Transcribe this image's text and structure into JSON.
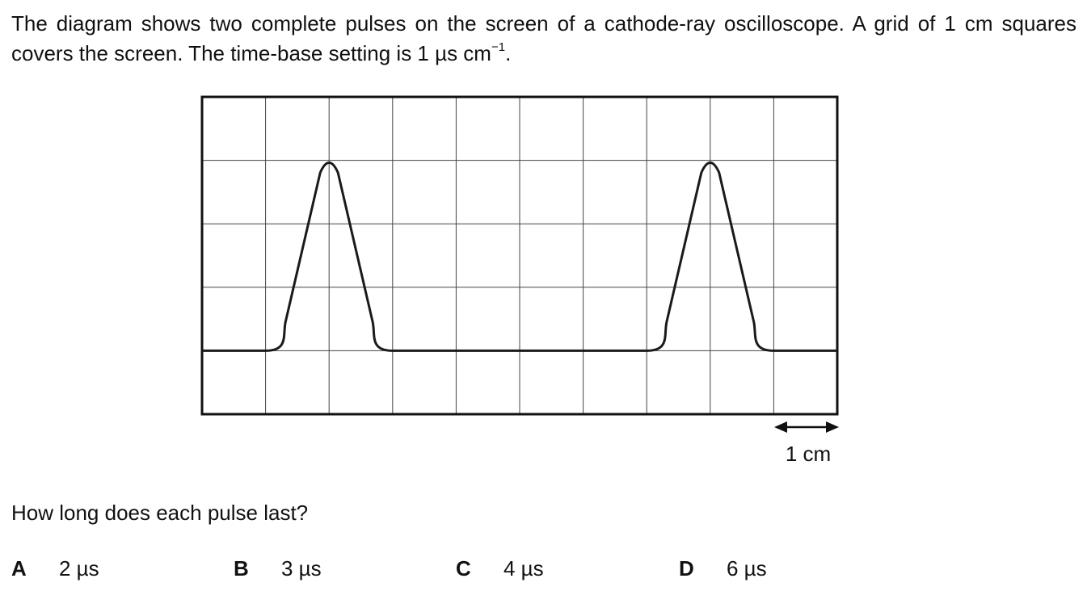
{
  "question": {
    "stem_part1": "The diagram shows two complete pulses on the screen of a cathode-ray oscilloscope. A grid of 1 cm squares covers the screen. The time-base setting is 1 µs cm",
    "stem_superscript": "−1",
    "stem_end": ".",
    "prompt": "How long does each pulse last?"
  },
  "diagram": {
    "grid": {
      "columns": 10,
      "rows": 5,
      "square_side_cm": 1
    },
    "scale_label": "1 cm",
    "trace": {
      "baseline_row_from_top": 4,
      "peak_row_from_top": 1,
      "pulse_start_columns": [
        1,
        7
      ],
      "pulse_width_columns": 2
    },
    "colors": {
      "trace": "#1a1a1a",
      "grid": "#444444",
      "border": "#111111"
    }
  },
  "options": [
    {
      "letter": "A",
      "value": "2 µs"
    },
    {
      "letter": "B",
      "value": "3 µs"
    },
    {
      "letter": "C",
      "value": "4 µs"
    },
    {
      "letter": "D",
      "value": "6 µs"
    }
  ]
}
